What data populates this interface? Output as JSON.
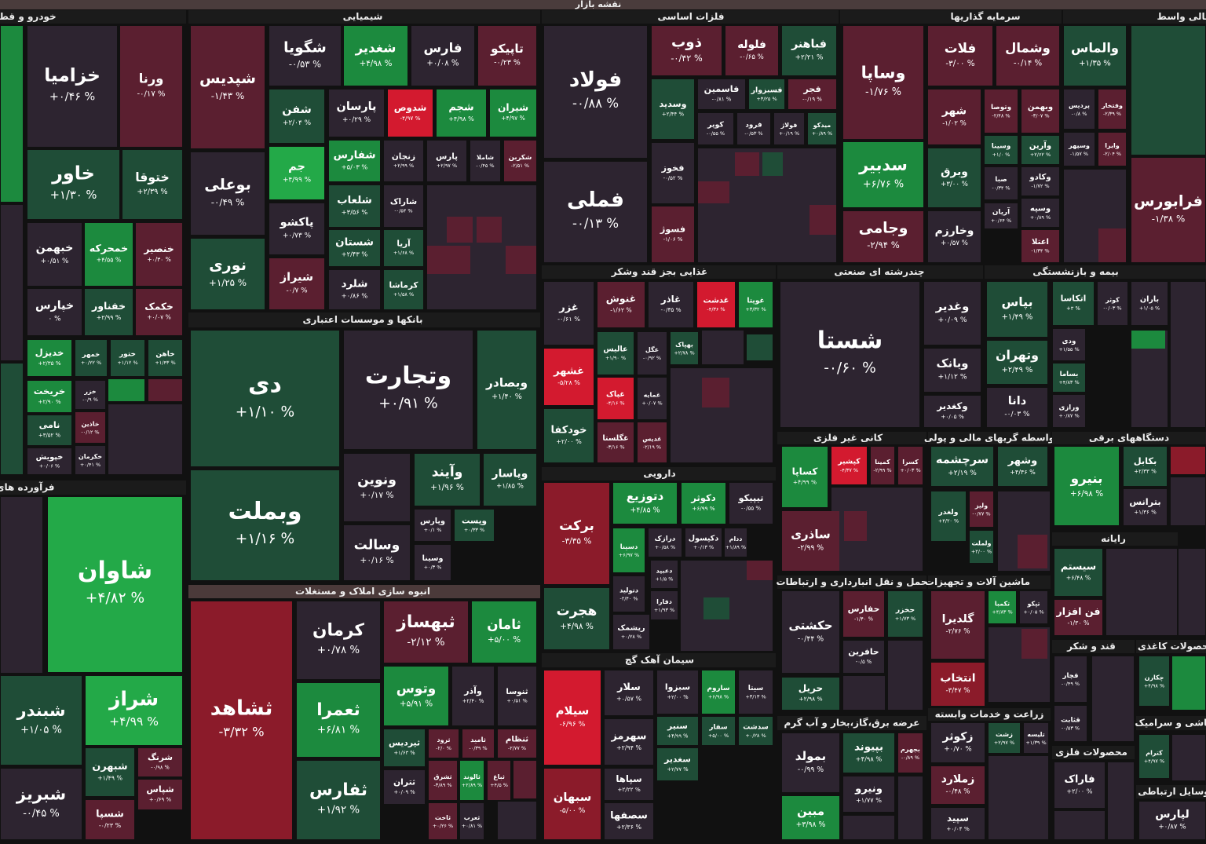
{
  "header": {
    "title": "نقشه بازار"
  },
  "sectors": [
    {
      "name": "خودرو و قطعا",
      "tiles": [
        {
          "symbol": "خزامیا",
          "change": "+۰/۴۶ %"
        },
        {
          "symbol": "ورنا",
          "change": "-۰/۱۷ %"
        },
        {
          "symbol": "خاور",
          "change": "+۱/۳۰ %"
        },
        {
          "symbol": "ختوقا",
          "change": "+۲/۳۹ %"
        },
        {
          "symbol": "خبهمن",
          "change": "+۰/۵۱ %"
        },
        {
          "symbol": "خمحرکه",
          "change": "+۴/۵۵ %"
        },
        {
          "symbol": "خنصیر",
          "change": "+۰/۳۰ %"
        },
        {
          "symbol": "خپارس",
          "change": "۰ %"
        },
        {
          "symbol": "خفناور",
          "change": "+۲/۹۹ %"
        },
        {
          "symbol": "خکمک",
          "change": "+۰/۰۷ %"
        },
        {
          "symbol": "خدیزل",
          "change": "+۲/۳۵ %"
        },
        {
          "symbol": "خمهر",
          "change": "+۰/۲۲ %"
        },
        {
          "symbol": "ختور",
          "change": "+۱/۱۲ %"
        },
        {
          "symbol": "خاهن",
          "change": "+۱/۴۳ %"
        },
        {
          "symbol": "خریخت",
          "change": "+۲/۹۰ %"
        },
        {
          "symbol": "خزر",
          "change": "-۰/۹ %"
        },
        {
          "symbol": "خاذین",
          "change": "-۰/۱۲ %"
        },
        {
          "symbol": "نامی",
          "change": "+۳/۵۲ %"
        },
        {
          "symbol": "خپویش",
          "change": "+۰/۰۶ %"
        },
        {
          "symbol": "خکرمان",
          "change": "+۰/۴۱ %"
        }
      ]
    },
    {
      "name": "فرآورده های",
      "tiles": [
        {
          "symbol": "شاوان",
          "change": "+۴/۸۲ %"
        },
        {
          "symbol": "شبندر",
          "change": "+۱/۰۵ %"
        },
        {
          "symbol": "شراز",
          "change": "+۴/۹۹ %"
        },
        {
          "symbol": "شبهرن",
          "change": "+۱/۴۹ %"
        },
        {
          "symbol": "شرنگ",
          "change": "-۰/۹۸ %"
        },
        {
          "symbol": "شپاس",
          "change": "+۰/۶۹ %"
        },
        {
          "symbol": "شبریز",
          "change": "-۰/۴۵ %"
        },
        {
          "symbol": "شسپا",
          "change": "-۰/۲۳ %"
        }
      ]
    },
    {
      "name": "شیمیایی",
      "tiles": [
        {
          "symbol": "شپدیس",
          "change": "-۱/۴۳ %"
        },
        {
          "symbol": "بوعلی",
          "change": "-۰/۴۹ %"
        },
        {
          "symbol": "نوری",
          "change": "+۱/۲۵ %"
        },
        {
          "symbol": "شگویا",
          "change": "-۰/۵۳ %"
        },
        {
          "symbol": "شغدیر",
          "change": "+۴/۹۸ %"
        },
        {
          "symbol": "فارس",
          "change": "+۰/۰۸ %"
        },
        {
          "symbol": "تاپیکو",
          "change": "-۰/۲۳ %"
        },
        {
          "symbol": "شفن",
          "change": "+۲/۰۴ %"
        },
        {
          "symbol": "پارسان",
          "change": "+۰/۲۹ %"
        },
        {
          "symbol": "شدوص",
          "change": "-۴/۹۷ %"
        },
        {
          "symbol": "شجم",
          "change": "+۴/۹۸ %"
        },
        {
          "symbol": "شیران",
          "change": "+۴/۹۷ %"
        },
        {
          "symbol": "جم",
          "change": "+۴/۹۹ %"
        },
        {
          "symbol": "شفارس",
          "change": "+۵/۰۳ %"
        },
        {
          "symbol": "زنجان",
          "change": "+۲/۹۹ %"
        },
        {
          "symbol": "پارس",
          "change": "+۲/۹۷ %"
        },
        {
          "symbol": "شاملا",
          "change": "-۰/۴۵ %"
        },
        {
          "symbol": "شکربن",
          "change": "-۲/۵۱ %"
        },
        {
          "symbol": "پاکشو",
          "change": "+۰/۷۳ %"
        },
        {
          "symbol": "شیراز",
          "change": "-۰/۷ %"
        },
        {
          "symbol": "شلعاب",
          "change": "+۳/۵۶ %"
        },
        {
          "symbol": "شستان",
          "change": "+۲/۴۳ %"
        },
        {
          "symbol": "شلرد",
          "change": "+۰/۸۶ %"
        },
        {
          "symbol": "شاراک",
          "change": "-۰/۵۴ %"
        },
        {
          "symbol": "آریا",
          "change": "+۱/۶۸ %"
        },
        {
          "symbol": "کرماشا",
          "change": "+۱/۵۸ %"
        }
      ]
    },
    {
      "name": "بانکها و موسسات اعتباری",
      "tiles": [
        {
          "symbol": "دی",
          "change": "+۱/۱۰ %"
        },
        {
          "symbol": "وبملت",
          "change": "+۱/۱۶ %"
        },
        {
          "symbol": "وتجارت",
          "change": "+۰/۹۱ %"
        },
        {
          "symbol": "وبصادر",
          "change": "+۱/۴۰ %"
        },
        {
          "symbol": "ونوین",
          "change": "+۰/۱۷ %"
        },
        {
          "symbol": "وآیند",
          "change": "+۱/۹۶ %"
        },
        {
          "symbol": "وپاسار",
          "change": "+۱/۸۵ %"
        },
        {
          "symbol": "وپارس",
          "change": "+۰/۱ %"
        },
        {
          "symbol": "وپست",
          "change": "+۰/۳۳ %"
        },
        {
          "symbol": "وسالت",
          "change": "+۰/۱۶ %"
        },
        {
          "symbol": "وسینا",
          "change": "+۰/۳ %"
        }
      ]
    },
    {
      "name": "انبوه سازی املاک و مستغلات",
      "tiles": [
        {
          "symbol": "ثشاهد",
          "change": "-۳/۳۲ %"
        },
        {
          "symbol": "کرمان",
          "change": "+۰/۷۸ %"
        },
        {
          "symbol": "ثعمرا",
          "change": "+۶/۸۱ %"
        },
        {
          "symbol": "ثفارس",
          "change": "+۱/۹۲ %"
        },
        {
          "symbol": "ثبهساز",
          "change": "-۲/۱۲ %"
        },
        {
          "symbol": "ثامان",
          "change": "+۵/۰۰ %"
        },
        {
          "symbol": "وتوس",
          "change": "+۵/۹۱ %"
        },
        {
          "symbol": "وآذر",
          "change": "+۲/۴۰ %"
        },
        {
          "symbol": "ثنوسا",
          "change": "+۰/۵۱ %"
        },
        {
          "symbol": "ثپردیس",
          "change": "+۱/۶۳ %"
        },
        {
          "symbol": "ثرود",
          "change": "-۲/۰ %"
        },
        {
          "symbol": "ثامید",
          "change": "-۰/۳۹ %"
        },
        {
          "symbol": "ثنظام",
          "change": "-۲/۷۷ %"
        },
        {
          "symbol": "ثتران",
          "change": "+۰/۰۹ %"
        },
        {
          "symbol": "ثشرق",
          "change": "-۳/۸۹ %"
        },
        {
          "symbol": "ثالوند",
          "change": "+۲/۸۹ %"
        },
        {
          "symbol": "ثباغ",
          "change": "+۴/۵ %"
        },
        {
          "symbol": "ثاخت",
          "change": "+۰/۲۶ %"
        },
        {
          "symbol": "ثعرب",
          "change": "+۰/۸۱ %"
        }
      ]
    },
    {
      "name": "فلزات اساسی",
      "tiles": [
        {
          "symbol": "فولاد",
          "change": "-۰/۸۸ %"
        },
        {
          "symbol": "فملی",
          "change": "-۰/۱۳ %"
        },
        {
          "symbol": "ذوب",
          "change": "-۰/۴۲ %"
        },
        {
          "symbol": "فلوله",
          "change": "-۰/۶۵ %"
        },
        {
          "symbol": "فباهنر",
          "change": "+۲/۲۱ %"
        },
        {
          "symbol": "وسدید",
          "change": "+۲/۴۴ %"
        },
        {
          "symbol": "فاسمین",
          "change": "-۰/۸۱ %"
        },
        {
          "symbol": "فسبزوار",
          "change": "+۳/۲۵ %"
        },
        {
          "symbol": "فجر",
          "change": "-۰/۱۹ %"
        },
        {
          "symbol": "کویر",
          "change": "-۰/۵۵ %"
        },
        {
          "symbol": "فرود",
          "change": "-۰/۵۳ %"
        },
        {
          "symbol": "فولاژ",
          "change": "+۰/۱۹ %"
        },
        {
          "symbol": "میدکو",
          "change": "+۰/۸۹ %"
        },
        {
          "symbol": "فخوز",
          "change": "-۰/۵۲ %"
        },
        {
          "symbol": "فسوژ",
          "change": "-۱/۰۶ %"
        }
      ]
    },
    {
      "name": "غذایی بجز قند وشکر",
      "tiles": [
        {
          "symbol": "غزر",
          "change": "-۰/۶۱ %"
        },
        {
          "symbol": "غشهر",
          "change": "-۵/۲۸ %"
        },
        {
          "symbol": "خودکفا",
          "change": "+۲/۰۰ %"
        },
        {
          "symbol": "غنوش",
          "change": "-۱/۶۲ %"
        },
        {
          "symbol": "غاذر",
          "change": "-۰/۳۵ %"
        },
        {
          "symbol": "غدشت",
          "change": "-۴/۳۶ %"
        },
        {
          "symbol": "غویتا",
          "change": "+۳/۳۲ %"
        },
        {
          "symbol": "عالیس",
          "change": "+۱/۹۰ %"
        },
        {
          "symbol": "غگل",
          "change": "-۰/۹۲ %"
        },
        {
          "symbol": "بهپاک",
          "change": "+۲/۷۸ %"
        },
        {
          "symbol": "غپاک",
          "change": "-۴/۱۶ %"
        },
        {
          "symbol": "غمایه",
          "change": "+۰/۰۷ %"
        },
        {
          "symbol": "غگلستا",
          "change": "-۳/۱۶ %"
        },
        {
          "symbol": "غدیس",
          "change": "-۲/۱۹ %"
        }
      ]
    },
    {
      "name": "دارویی",
      "tiles": [
        {
          "symbol": "برکت",
          "change": "-۳/۳۵ %"
        },
        {
          "symbol": "هجرت",
          "change": "+۴/۹۸ %"
        },
        {
          "symbol": "دتوزیع",
          "change": "+۴/۸۵ %"
        },
        {
          "symbol": "دکوثر",
          "change": "+۶/۹۹ %"
        },
        {
          "symbol": "تیپیکو",
          "change": "-۰/۵۵ %"
        },
        {
          "symbol": "دسینا",
          "change": "+۶/۹۷ %"
        },
        {
          "symbol": "درازک",
          "change": "+۰/۵۸ %"
        },
        {
          "symbol": "دکپسول",
          "change": "+۰/۱۳ %"
        },
        {
          "symbol": "ددام",
          "change": "+۱/۸۹ %"
        },
        {
          "symbol": "دعبید",
          "change": "+۱/۵ %"
        },
        {
          "symbol": "دتولید",
          "change": "-۲/۴۰ %"
        },
        {
          "symbol": "دفارا",
          "change": "+۱/۹۳ %"
        },
        {
          "symbol": "ریشمک",
          "change": "+۰/۲۸ %"
        }
      ]
    },
    {
      "name": "سیمان آهک گچ",
      "tiles": [
        {
          "symbol": "سیلام",
          "change": "-۶/۹۶ %"
        },
        {
          "symbol": "سبهان",
          "change": "-۵/۰۰ %"
        },
        {
          "symbol": "سلار",
          "change": "+۰/۵۷ %"
        },
        {
          "symbol": "سبزوا",
          "change": "+۲/۰۰ %"
        },
        {
          "symbol": "ساروم",
          "change": "+۶/۹۸ %"
        },
        {
          "symbol": "سیتا",
          "change": "+۳/۱۳ %"
        },
        {
          "symbol": "سنیر",
          "change": "+۴/۹۹ %"
        },
        {
          "symbol": "سفار",
          "change": "+۵/۰۰ %"
        },
        {
          "symbol": "سدشت",
          "change": "+۰/۲۸ %"
        },
        {
          "symbol": "سهرمز",
          "change": "+۲/۹۴ %"
        },
        {
          "symbol": "سغدیر",
          "change": "+۲/۷۷ %"
        },
        {
          "symbol": "سپاها",
          "change": "+۲/۲۲ %"
        },
        {
          "symbol": "سصفها",
          "change": "+۲/۳۶ %"
        }
      ]
    },
    {
      "name": "سرمایه گذاریها",
      "tiles": [
        {
          "symbol": "وساپا",
          "change": "-۱/۷۶ %"
        },
        {
          "symbol": "سدبیر",
          "change": "+۶/۷۶ %"
        },
        {
          "symbol": "وجامی",
          "change": "-۲/۹۴ %"
        },
        {
          "symbol": "فلات",
          "change": "-۳/۰۰ %"
        },
        {
          "symbol": "وشمال",
          "change": "-۰/۱۴ %"
        },
        {
          "symbol": "شهر",
          "change": "-۱/۰۲ %"
        },
        {
          "symbol": "وتوصا",
          "change": "-۲/۴۸ %"
        },
        {
          "symbol": "وبهمن",
          "change": "-۳/۰۷ %"
        },
        {
          "symbol": "وسینا",
          "change": "+۱/۰ %"
        },
        {
          "symbol": "وآرین",
          "change": "+۲/۶۲ %"
        },
        {
          "symbol": "وبرق",
          "change": "+۳/۰۰ %"
        },
        {
          "symbol": "صبا",
          "change": "-۰/۳۴ %"
        },
        {
          "symbol": "وکادو",
          "change": "-۱/۷۲ %"
        },
        {
          "symbol": "آریان",
          "change": "+۰/۶۴ %"
        },
        {
          "symbol": "وسپه",
          "change": "+۰/۸۹ %"
        },
        {
          "symbol": "وخارزم",
          "change": "+۰/۵۷ %"
        },
        {
          "symbol": "اعتلا",
          "change": "-۱/۳۴ %"
        }
      ]
    },
    {
      "name": "مالی واسط",
      "tiles": [
        {
          "symbol": "والماس",
          "change": "+۱/۳۵ %"
        },
        {
          "symbol": "پردیس",
          "change": "-۰/۸ %"
        },
        {
          "symbol": "وفتخار",
          "change": "-۲/۳۹ %"
        },
        {
          "symbol": "وسپهر",
          "change": "-۱/۵۷ %"
        },
        {
          "symbol": "وایرا",
          "change": "-۲/۰۴ %"
        },
        {
          "symbol": "فرابورس",
          "change": "-۱/۳۸ %"
        }
      ]
    },
    {
      "name": "چندرشته ای صنعتی",
      "tiles": [
        {
          "symbol": "شستا",
          "change": "-۰/۶۰ %"
        },
        {
          "symbol": "وغدیر",
          "change": "+۰/۰۹ %"
        },
        {
          "symbol": "وبانک",
          "change": "+۱/۱۲ %"
        },
        {
          "symbol": "وکغدیر",
          "change": "+۰/۰۵ %"
        }
      ]
    },
    {
      "name": "بیمه و بازنشستگی",
      "tiles": [
        {
          "symbol": "بپاس",
          "change": "+۱/۴۹ %"
        },
        {
          "symbol": "وتهران",
          "change": "+۲/۴۹ %"
        },
        {
          "symbol": "دانا",
          "change": "-۰/۰۳ %"
        },
        {
          "symbol": "اتکاسا",
          "change": "+۳ %"
        },
        {
          "symbol": "کوثر",
          "change": "-۰/۰۳ %"
        },
        {
          "symbol": "باران",
          "change": "+۱/۰۵ %"
        },
        {
          "symbol": "ودی",
          "change": "+۱/۵۵ %"
        },
        {
          "symbol": "بساما",
          "change": "+۴/۸۳ %"
        },
        {
          "symbol": "ورازی",
          "change": "+۰/۸۷ %"
        }
      ]
    },
    {
      "name": "کانی غیر فلزی",
      "tiles": [
        {
          "symbol": "کساپا",
          "change": "+۴/۹۹ %"
        },
        {
          "symbol": "کپشیر",
          "change": "-۴/۳۷ %"
        },
        {
          "symbol": "کمینا",
          "change": "-۲/۹۹ %"
        },
        {
          "symbol": "کسرا",
          "change": "+۰/۰۳ %"
        },
        {
          "symbol": "ساذری",
          "change": "-۲/۹۹ %"
        }
      ]
    },
    {
      "name": "واسطه گریهای مالی و پولی",
      "tiles": [
        {
          "symbol": "سرچشمه",
          "change": "+۲/۱۹ %"
        },
        {
          "symbol": "وشهر",
          "change": "+۴/۴۶ %"
        },
        {
          "symbol": "ولغدر",
          "change": "+۴/۲۰ %"
        },
        {
          "symbol": "ولیز",
          "change": "-۰/۷۷ %"
        },
        {
          "symbol": "ولملت",
          "change": "+۲/۰۰ %"
        }
      ]
    },
    {
      "name": "دستگاههای برقی",
      "tiles": [
        {
          "symbol": "بنیرو",
          "change": "+۶/۹۸ %"
        },
        {
          "symbol": "بکابل",
          "change": "+۲/۳۳ %"
        },
        {
          "symbol": "بترانس",
          "change": "+۱/۳۶ %"
        }
      ]
    },
    {
      "name": "حمل و نقل انبارداری و ارتباطات",
      "tiles": [
        {
          "symbol": "حکشتی",
          "change": "-۰/۴۴ %"
        },
        {
          "symbol": "حفارس",
          "change": "-۱/۴۰ %"
        },
        {
          "symbol": "حخزر",
          "change": "+۱/۷۳ %"
        },
        {
          "symbol": "حافرین",
          "change": "-۰/۵ %"
        },
        {
          "symbol": "حریل",
          "change": "+۲/۹۸ %"
        }
      ]
    },
    {
      "name": "ماشین آلات و تجهیزات",
      "tiles": [
        {
          "symbol": "گلدیرا",
          "change": "-۲/۷۶ %"
        },
        {
          "symbol": "تکمبا",
          "change": "+۴/۸۳ %"
        },
        {
          "symbol": "تپکو",
          "change": "+۰/۰۵ %"
        },
        {
          "symbol": "انتخاب",
          "change": "-۳/۴۷ %"
        }
      ]
    },
    {
      "name": "رایانه",
      "tiles": [
        {
          "symbol": "سیستم",
          "change": "+۶/۴۸ %"
        },
        {
          "symbol": "فن افزار",
          "change": "-۱/۳۰ %"
        }
      ]
    },
    {
      "name": "عرضه برق،گاز،بخار و آب گرم",
      "tiles": [
        {
          "symbol": "بمولد",
          "change": "-۰/۹۹ %"
        },
        {
          "symbol": "مبین",
          "change": "+۳/۹۸ %"
        },
        {
          "symbol": "بپیوند",
          "change": "+۴/۹۸ %"
        },
        {
          "symbol": "بجهرم",
          "change": "-۰/۸۹ %"
        },
        {
          "symbol": "ونیرو",
          "change": "+۱/۷۷ %"
        }
      ]
    },
    {
      "name": "زراعت و خدمات وابسته",
      "tiles": [
        {
          "symbol": "زکوثر",
          "change": "+۰/۷۰ %"
        },
        {
          "symbol": "زشت",
          "change": "+۲/۹۷ %"
        },
        {
          "symbol": "تلیسه",
          "change": "+۱/۳۹ %"
        },
        {
          "symbol": "زملارد",
          "change": "-۰/۴۸ %"
        },
        {
          "symbol": "سپید",
          "change": "+۰/۰۴ %"
        }
      ]
    },
    {
      "name": "قند و شکر",
      "tiles": [
        {
          "symbol": "قچار",
          "change": "-۰/۴۹ %"
        },
        {
          "symbol": "قثابت",
          "change": "-۰/۵۳ %"
        }
      ]
    },
    {
      "name": "محصولات کاغذی",
      "tiles": [
        {
          "symbol": "چکارن",
          "change": "+۴/۹۸ %"
        }
      ]
    },
    {
      "name": "محصولات فلزی",
      "tiles": [
        {
          "symbol": "فاراک",
          "change": "+۲/۰۰ %"
        }
      ]
    },
    {
      "name": "کاشی و سرامیک",
      "tiles": [
        {
          "symbol": "کترام",
          "change": "+۴/۹۷ %"
        }
      ]
    },
    {
      "name": "وسایل ارتباطی",
      "tiles": [
        {
          "symbol": "لپارس",
          "change": "+۰/۸۷ %"
        }
      ]
    }
  ]
}
